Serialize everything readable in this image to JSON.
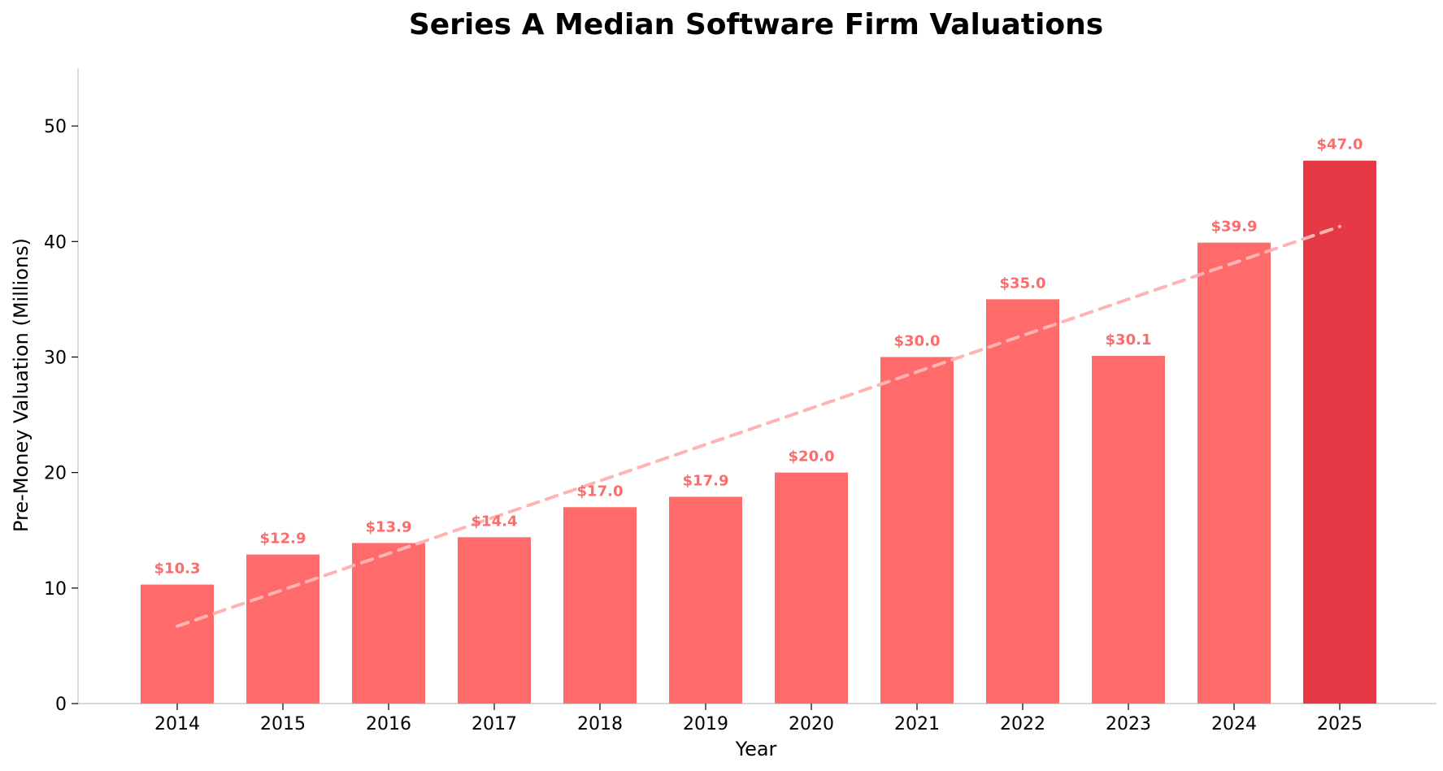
{
  "chart_data": {
    "type": "bar",
    "title": "Series A Median Software Firm Valuations",
    "xlabel": "Year",
    "ylabel": "Pre-Money Valuation (Millions)",
    "categories": [
      "2014",
      "2015",
      "2016",
      "2017",
      "2018",
      "2019",
      "2020",
      "2021",
      "2022",
      "2023",
      "2024",
      "2025"
    ],
    "values": [
      10.3,
      12.9,
      13.9,
      14.4,
      17.0,
      17.9,
      20.0,
      30.0,
      35.0,
      30.1,
      39.9,
      47.0
    ],
    "data_labels": [
      "$10.3",
      "$12.9",
      "$13.9",
      "$14.4",
      "$17.0",
      "$17.9",
      "$20.0",
      "$30.0",
      "$35.0",
      "$30.1",
      "$39.9",
      "$47.0"
    ],
    "ylim": [
      0,
      55
    ],
    "yticks": [
      0,
      10,
      20,
      30,
      40,
      50
    ],
    "trendline": {
      "start": 6.7,
      "end": 41.3,
      "style": "dashed"
    },
    "grid": false,
    "legend": "none",
    "colors": {
      "bar": "#ff6b6b",
      "highlight_bar": "#e63946",
      "trendline": "#ffb3b3",
      "data_label": "#ff6b6b",
      "axis": "#cccccc"
    },
    "highlight_index": 11
  }
}
